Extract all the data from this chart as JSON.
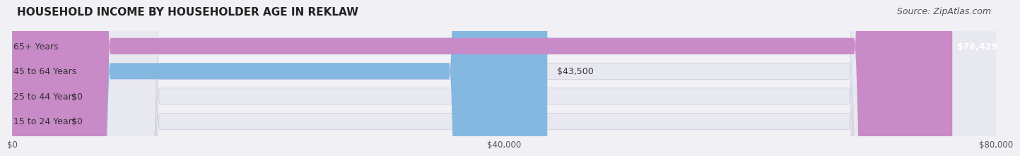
{
  "title": "HOUSEHOLD INCOME BY HOUSEHOLDER AGE IN REKLAW",
  "source": "Source: ZipAtlas.com",
  "categories": [
    "15 to 24 Years",
    "25 to 44 Years",
    "45 to 64 Years",
    "65+ Years"
  ],
  "values": [
    0,
    0,
    43500,
    76429
  ],
  "bar_colors": [
    "#f0c898",
    "#f0a0a0",
    "#85b8e0",
    "#c98ac8"
  ],
  "label_colors": [
    "#333333",
    "#333333",
    "#333333",
    "#ffffff"
  ],
  "value_labels": [
    "$0",
    "$0",
    "$43,500",
    "$76,429"
  ],
  "xlim": [
    0,
    80000
  ],
  "xticks": [
    0,
    40000,
    80000
  ],
  "xtick_labels": [
    "$0",
    "$40,000",
    "$80,000"
  ],
  "bg_color": "#f0f0f5",
  "bar_bg_color": "#e8e8f0",
  "title_fontsize": 11,
  "source_fontsize": 9,
  "label_fontsize": 9,
  "value_fontsize": 9,
  "bar_height": 0.65
}
